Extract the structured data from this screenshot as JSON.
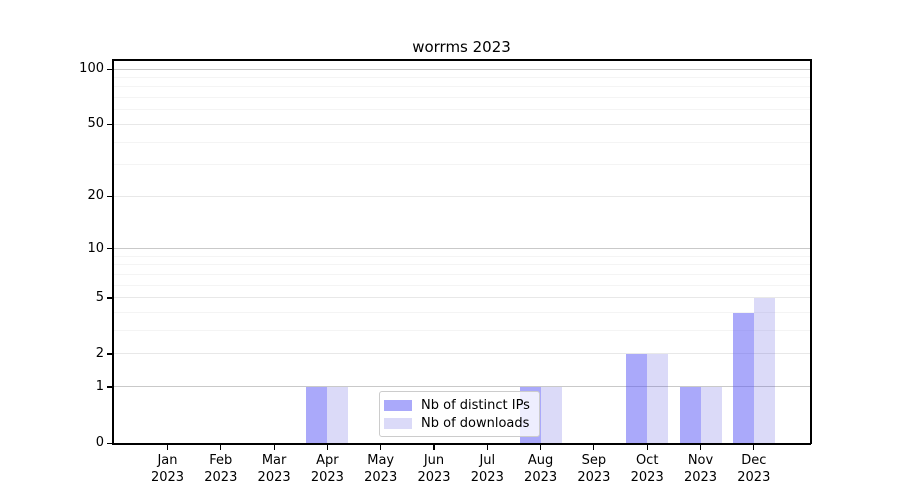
{
  "chart_data": {
    "type": "bar",
    "title": "worrms 2023",
    "year": "2023",
    "categories": [
      "Jan",
      "Feb",
      "Mar",
      "Apr",
      "May",
      "Jun",
      "Jul",
      "Aug",
      "Sep",
      "Oct",
      "Nov",
      "Dec"
    ],
    "series": [
      {
        "name": "Nb of distinct IPs",
        "color": "rgba(85,84,245,0.5)",
        "color_on_white": "#abaaf9",
        "values": [
          0,
          0,
          0,
          1,
          0,
          0,
          0,
          1,
          0,
          2,
          1,
          4
        ]
      },
      {
        "name": "Nb of downloads",
        "color": "rgba(75,70,220,0.2)",
        "color_on_white": "#dbdaf8",
        "values": [
          0,
          0,
          0,
          1,
          0,
          0,
          0,
          1,
          0,
          2,
          1,
          5
        ]
      }
    ],
    "y_axis": {
      "scale": "log1p",
      "ticks": [
        0,
        1,
        2,
        5,
        10,
        20,
        50,
        100
      ],
      "minor_ticks": [
        3,
        4,
        6,
        7,
        8,
        9,
        30,
        40,
        60,
        70,
        80,
        90
      ],
      "lim": [
        0,
        112
      ]
    },
    "x_axis": {
      "tick_label_format": "month over year, two lines"
    },
    "grid": {
      "shown": true,
      "decade_line_color": "#c9c9c9",
      "labeled_line_color": "#e8e8e8",
      "minor_line_color": "#f4f4f4"
    },
    "legend": {
      "position": "lower center",
      "background": "rgba(255,255,255,0.8)",
      "border_color": "#cccccc"
    },
    "colors": {
      "figure_background": "#ffffff",
      "spine": "#000000",
      "text": "#000000"
    }
  }
}
